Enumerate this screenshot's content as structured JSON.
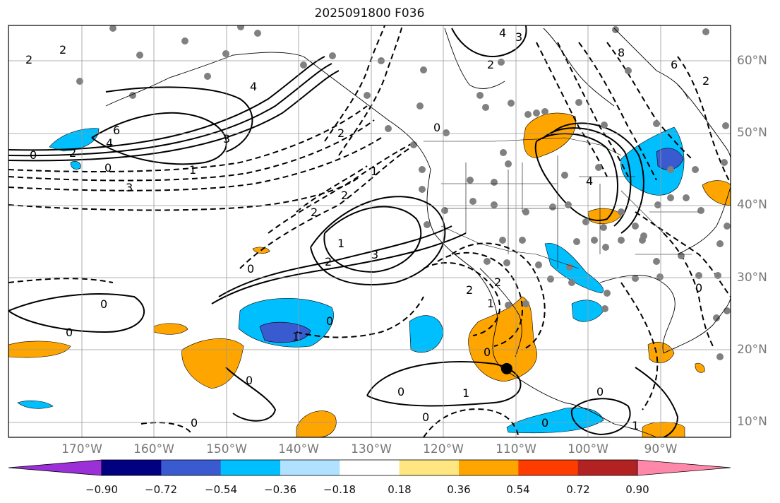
{
  "title": "2025091800 F036",
  "lat_labels": [
    "60°N",
    "50°N",
    "40°N",
    "30°N",
    "20°N",
    "10°N"
  ],
  "lon_labels": [
    "170°W",
    "160°W",
    "150°W",
    "140°W",
    "130°W",
    "120°W",
    "110°W",
    "100°W",
    "90°W"
  ],
  "colorbar": {
    "labels": [
      "−0.90",
      "−0.72",
      "−0.54",
      "−0.36",
      "−0.18",
      "0.18",
      "0.36",
      "0.54",
      "0.72",
      "0.90"
    ],
    "colors": [
      "#9b30d9",
      "#000080",
      "#3a5bcf",
      "#00bfff",
      "#b0e2ff",
      "#ffffff",
      "#ffe680",
      "#ffa500",
      "#ff3c00",
      "#b22222",
      "#ff88aa"
    ]
  },
  "contour_labels": [
    "2",
    "2",
    "4",
    "3",
    "2",
    "8",
    "6",
    "2",
    "4",
    "6",
    "4",
    "3",
    "2",
    "0",
    "1",
    "0",
    "3",
    "2",
    "1",
    "2",
    "0",
    "2",
    "1",
    "3",
    "2",
    "0",
    "4",
    "0",
    "0",
    "1",
    "0",
    "0",
    "1",
    "2",
    "2",
    "0",
    "1",
    "0",
    "0",
    "1",
    "0",
    "0",
    "0",
    "0"
  ],
  "marker_lonlat": [
    -111,
    17.5
  ],
  "map_extent": {
    "lon": [
      -180,
      -80
    ],
    "lat": [
      8,
      65
    ]
  }
}
